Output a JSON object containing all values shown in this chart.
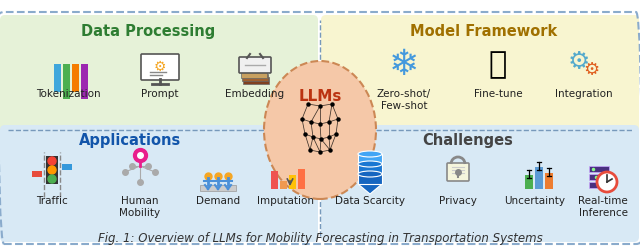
{
  "title": "Fig. 1: Overview of LLMs for Mobility Forecasting in Transportation Systems",
  "title_fontsize": 8.5,
  "bg_color": "#ffffff",
  "outer_border_color": "#8aabcc",
  "top_left_bg": "#e6f2d8",
  "top_right_bg": "#f8f5d0",
  "bottom_left_bg": "#d8e9f5",
  "bottom_right_bg": "#d8e9f5",
  "data_processing_title": "Data Processing",
  "data_processing_color": "#2e7d32",
  "model_framework_title": "Model Framework",
  "model_framework_color": "#a07000",
  "applications_title": "Applications",
  "applications_color": "#1255aa",
  "challenges_title": "Challenges",
  "challenges_color": "#444444",
  "llm_label": "LLMs",
  "llm_text_color": "#bb3311",
  "llm_ellipse_face": "#f5c8a8",
  "llm_ellipse_edge": "#cc8855",
  "dp_items": [
    "Tokenization",
    "Prompt",
    "Embedding"
  ],
  "mf_items": [
    "Zero-shot/\nFew-shot",
    "Fine-tune",
    "Integration"
  ],
  "app_items": [
    "Traffic",
    "Human\nMobility",
    "Demand",
    "Imputation"
  ],
  "ch_items": [
    "Data Scarcity",
    "Privacy",
    "Uncertainty",
    "Real-time\nInference"
  ],
  "divider_color": "#7799bb",
  "bar_colors_tok": [
    "#3fa7dc",
    "#4caf50",
    "#f57c00",
    "#9c27b0"
  ],
  "snowflake_color": "#4499dd",
  "flame_color": "#ff6600",
  "gear_color1": "#55aacc",
  "gear_color2": "#e06020",
  "traffic_colors": [
    "#f44336",
    "#ff9800",
    "#4caf50"
  ],
  "mobility_color": "#e91e8c",
  "demand_colors": [
    "#ef5350",
    "#ef5350",
    "#ffa726",
    "#ff7043"
  ],
  "imputation_colors": [
    "#f57c00",
    "#ef5350",
    "#ffa726",
    "#ff7043"
  ],
  "scarcity_colors": [
    "#1565c0",
    "#1565c0",
    "#1565c0"
  ],
  "uncertainty_colors": [
    "#4caf50",
    "#5b9bd5",
    "#ed7d31"
  ],
  "server_color": "#4a3080",
  "clock_color": "#e74c3c"
}
